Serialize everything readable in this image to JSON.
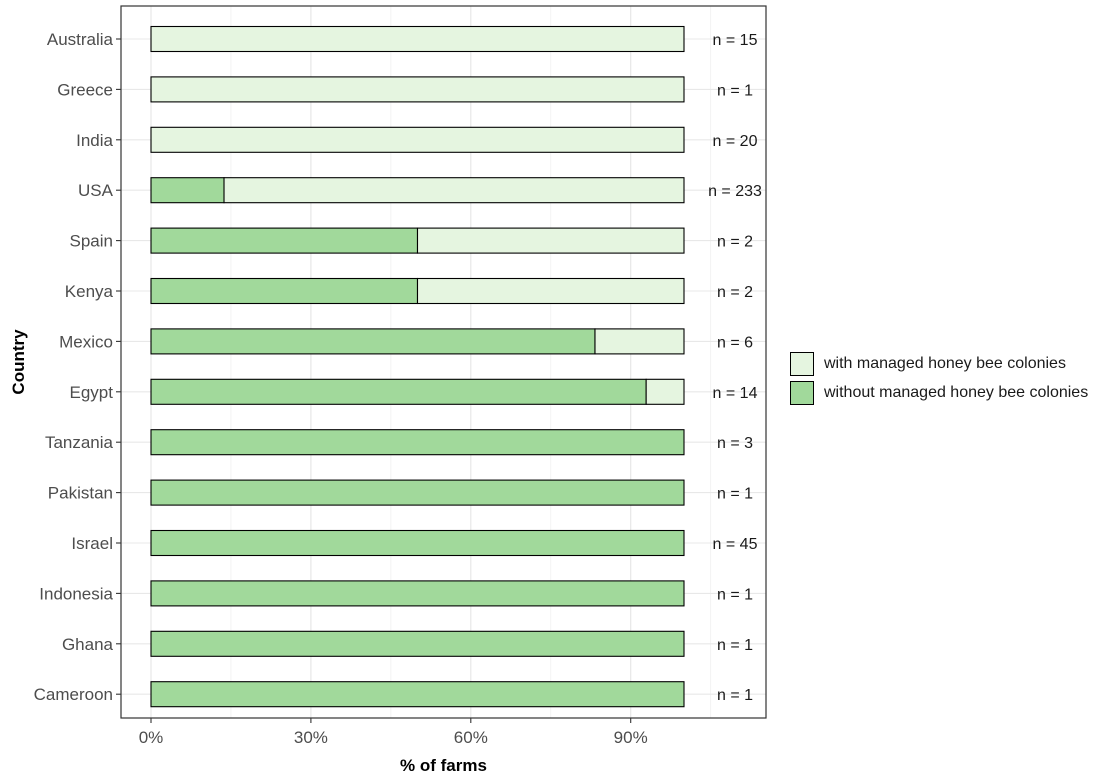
{
  "chart_data": {
    "type": "bar",
    "orientation": "horizontal",
    "stacked": true,
    "xlabel": "% of farms",
    "ylabel": "Country",
    "xlim": [
      0,
      1.05
    ],
    "xticks": [
      0,
      0.3,
      0.6,
      0.9
    ],
    "xtick_labels": [
      "0%",
      "30%",
      "60%",
      "90%"
    ],
    "grid": true,
    "legend_position": "right",
    "categories": [
      "Australia",
      "Greece",
      "India",
      "USA",
      "Spain",
      "Kenya",
      "Mexico",
      "Egypt",
      "Tanzania",
      "Pakistan",
      "Israel",
      "Indonesia",
      "Ghana",
      "Cameroon"
    ],
    "n_labels": [
      "n = 15",
      "n = 1",
      "n = 20",
      "n = 233",
      "n = 2",
      "n = 2",
      "n = 6",
      "n = 14",
      "n = 3",
      "n = 1",
      "n = 45",
      "n = 1",
      "n = 1",
      "n = 1"
    ],
    "series": [
      {
        "name": "without managed honey bee colonies",
        "color": "#a1d99b",
        "values": [
          0,
          0,
          0,
          0.137,
          0.5,
          0.5,
          0.833,
          0.929,
          1,
          1,
          1,
          1,
          1,
          1
        ]
      },
      {
        "name": "with managed honey bee colonies",
        "color": "#e5f5e0",
        "values": [
          1,
          1,
          1,
          0.863,
          0.5,
          0.5,
          0.167,
          0.071,
          0,
          0,
          0,
          0,
          0,
          0
        ]
      }
    ],
    "legend": [
      {
        "label": "with managed honey bee colonies",
        "color": "#e5f5e0"
      },
      {
        "label": "without managed honey bee colonies",
        "color": "#a1d99b"
      }
    ]
  }
}
